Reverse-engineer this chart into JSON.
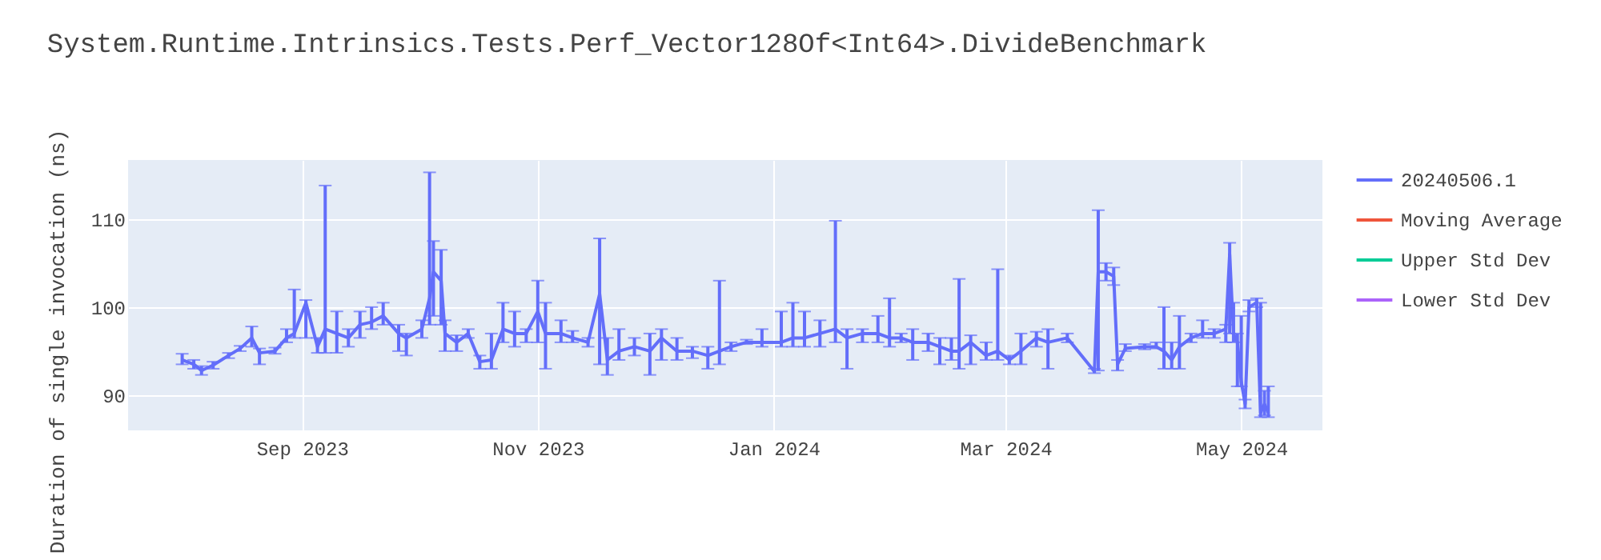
{
  "chart_data": {
    "type": "line",
    "title": "System.Runtime.Intrinsics.Tests.Perf_Vector128Of<Int64>.DivideBenchmark",
    "ylabel": "Duration of single invocation (ns)",
    "x": [
      "2023-08-01",
      "2023-08-04",
      "2023-08-06",
      "2023-08-09",
      "2023-08-13",
      "2023-08-16",
      "2023-08-19",
      "2023-08-21",
      "2023-08-25",
      "2023-08-28",
      "2023-08-30",
      "2023-09-02",
      "2023-09-05",
      "2023-09-07",
      "2023-09-10",
      "2023-09-13",
      "2023-09-16",
      "2023-09-19",
      "2023-09-22",
      "2023-09-26",
      "2023-09-28",
      "2023-10-02",
      "2023-10-04",
      "2023-10-05",
      "2023-10-07",
      "2023-10-08",
      "2023-10-11",
      "2023-10-14",
      "2023-10-17",
      "2023-10-20",
      "2023-10-23",
      "2023-10-26",
      "2023-10-29",
      "2023-11-01",
      "2023-11-03",
      "2023-11-07",
      "2023-11-10",
      "2023-11-14",
      "2023-11-17",
      "2023-11-19",
      "2023-11-22",
      "2023-11-26",
      "2023-11-30",
      "2023-12-03",
      "2023-12-07",
      "2023-12-11",
      "2023-12-15",
      "2023-12-18",
      "2023-12-21",
      "2023-12-25",
      "2023-12-29",
      "2024-01-03",
      "2024-01-06",
      "2024-01-09",
      "2024-01-13",
      "2024-01-17",
      "2024-01-20",
      "2024-01-24",
      "2024-01-28",
      "2024-01-31",
      "2024-02-03",
      "2024-02-06",
      "2024-02-10",
      "2024-02-13",
      "2024-02-16",
      "2024-02-18",
      "2024-02-21",
      "2024-02-25",
      "2024-02-28",
      "2024-03-02",
      "2024-03-05",
      "2024-03-09",
      "2024-03-12",
      "2024-03-17",
      "2024-03-24",
      "2024-03-25",
      "2024-03-27",
      "2024-03-29",
      "2024-03-30",
      "2024-04-01",
      "2024-04-06",
      "2024-04-09",
      "2024-04-11",
      "2024-04-13",
      "2024-04-15",
      "2024-04-18",
      "2024-04-21",
      "2024-04-24",
      "2024-04-27",
      "2024-04-28",
      "2024-04-29",
      "2024-04-30",
      "2024-05-01",
      "2024-05-02",
      "2024-05-03",
      "2024-05-05",
      "2024-05-06",
      "2024-05-07",
      "2024-05-08"
    ],
    "series": [
      {
        "name": "20240506.1",
        "color": "#636efa",
        "values": [
          94,
          93.5,
          92.8,
          93.4,
          94.5,
          95.3,
          96.5,
          94.8,
          95,
          96.5,
          97,
          100.5,
          95.5,
          97.5,
          97,
          96.5,
          98,
          98.3,
          99,
          97,
          96.5,
          97.5,
          101,
          104,
          103,
          97,
          96,
          97,
          93.8,
          94,
          97.5,
          97,
          97,
          99.5,
          97,
          97,
          96.5,
          96,
          101.5,
          94,
          95,
          95.5,
          95,
          96.5,
          95,
          95,
          94.5,
          95,
          95.5,
          96,
          96,
          96,
          96.5,
          96.5,
          97,
          97.5,
          96.5,
          97,
          97,
          96.5,
          96.5,
          96,
          96,
          95.5,
          95,
          95,
          96,
          94.5,
          95,
          94,
          95,
          96.5,
          96,
          96.5,
          92.7,
          104,
          104,
          103.5,
          93.5,
          95.3,
          95.5,
          95.5,
          95,
          94,
          95.5,
          96.5,
          97,
          97,
          97.5,
          106,
          97,
          96,
          91.5,
          89,
          100,
          100.5,
          88,
          89,
          88
        ],
        "errors": [
          [
            93.5,
            94.7
          ],
          [
            93,
            94
          ],
          [
            92.3,
            93.3
          ],
          [
            93,
            93.8
          ],
          [
            94.2,
            94.8
          ],
          [
            95,
            95.6
          ],
          [
            95.5,
            97.8
          ],
          [
            93.5,
            95.3
          ],
          [
            94.7,
            95.4
          ],
          [
            96,
            97.5
          ],
          [
            96.5,
            102
          ],
          [
            96.5,
            100.8
          ],
          [
            94.8,
            96.5
          ],
          [
            94.8,
            113.8
          ],
          [
            94.8,
            99.5
          ],
          [
            95.5,
            97.5
          ],
          [
            96.5,
            99.5
          ],
          [
            97.5,
            100
          ],
          [
            98,
            100.5
          ],
          [
            95,
            98
          ],
          [
            94.5,
            97
          ],
          [
            96.5,
            98.5
          ],
          [
            98,
            115.3
          ],
          [
            99,
            107.5
          ],
          [
            98,
            106.5
          ],
          [
            95,
            98.5
          ],
          [
            95,
            96.8
          ],
          [
            96.5,
            97.5
          ],
          [
            93,
            94.5
          ],
          [
            93,
            97
          ],
          [
            96,
            100.5
          ],
          [
            95.5,
            99.5
          ],
          [
            96,
            97.5
          ],
          [
            96,
            103
          ],
          [
            93,
            100.5
          ],
          [
            96,
            98.5
          ],
          [
            96,
            97.3
          ],
          [
            95.5,
            96.5
          ],
          [
            93.5,
            107.8
          ],
          [
            92.3,
            96.5
          ],
          [
            94,
            97.5
          ],
          [
            94.5,
            96.5
          ],
          [
            92.3,
            97
          ],
          [
            94,
            97.5
          ],
          [
            94,
            96.5
          ],
          [
            94.2,
            95.5
          ],
          [
            93,
            95.5
          ],
          [
            93.5,
            103
          ],
          [
            95,
            96
          ],
          [
            95.8,
            96.3
          ],
          [
            95.5,
            97.5
          ],
          [
            95.5,
            99.5
          ],
          [
            95.5,
            100.5
          ],
          [
            95.5,
            99.5
          ],
          [
            95.5,
            98.5
          ],
          [
            96,
            109.8
          ],
          [
            93,
            97.5
          ],
          [
            96,
            97.5
          ],
          [
            96,
            99
          ],
          [
            95.5,
            101
          ],
          [
            96,
            97
          ],
          [
            94,
            97.5
          ],
          [
            95,
            97
          ],
          [
            93.5,
            96.5
          ],
          [
            94,
            96.5
          ],
          [
            93,
            103.2
          ],
          [
            93.5,
            96.8
          ],
          [
            94,
            96
          ],
          [
            94,
            104.3
          ],
          [
            93.5,
            94.5
          ],
          [
            93.5,
            97
          ],
          [
            95.5,
            97.2
          ],
          [
            93,
            97.5
          ],
          [
            96,
            97
          ],
          [
            92.5,
            93
          ],
          [
            92.8,
            111
          ],
          [
            103,
            105
          ],
          [
            102.5,
            104.5
          ],
          [
            92.8,
            94
          ],
          [
            95,
            95.8
          ],
          [
            95.2,
            95.8
          ],
          [
            95.3,
            96
          ],
          [
            93,
            100
          ],
          [
            93,
            96
          ],
          [
            93,
            99
          ],
          [
            96,
            97
          ],
          [
            96.5,
            98.5
          ],
          [
            96.5,
            97.5
          ],
          [
            96,
            98
          ],
          [
            97,
            107.3
          ],
          [
            96,
            100.5
          ],
          [
            91,
            97
          ],
          [
            91,
            99
          ],
          [
            88.5,
            89.5
          ],
          [
            99.5,
            100.8
          ],
          [
            100,
            101
          ],
          [
            87.5,
            100.5
          ],
          [
            87.7,
            90.5
          ],
          [
            87.5,
            91
          ]
        ]
      },
      {
        "name": "Moving Average",
        "color": "#ef553b",
        "values": [
          null,
          null,
          null,
          null,
          null,
          null,
          null,
          null,
          null,
          null,
          null,
          null,
          null,
          null,
          null,
          null,
          null,
          null,
          null,
          null,
          null,
          null,
          null,
          null,
          null,
          null,
          null,
          null,
          null,
          null,
          null,
          null,
          null,
          null,
          null,
          null,
          null,
          null,
          null,
          null,
          null,
          null,
          null,
          null,
          null,
          null,
          null,
          null,
          null,
          null,
          null,
          null,
          null,
          null,
          null,
          null,
          null,
          null,
          null,
          null,
          null,
          null,
          null,
          null,
          null,
          null,
          null,
          null,
          null,
          null,
          null,
          null,
          null,
          null,
          null,
          null,
          null,
          null,
          null,
          null,
          null,
          null,
          null,
          null,
          null,
          null,
          null,
          null,
          null,
          null,
          null,
          null,
          null,
          null,
          null,
          null,
          null,
          null,
          null
        ]
      },
      {
        "name": "Upper Std Dev",
        "color": "#00cc96",
        "values": [
          null,
          null,
          null,
          null,
          null,
          null,
          null,
          null,
          null,
          null,
          null,
          null,
          null,
          null,
          null,
          null,
          null,
          null,
          null,
          null,
          null,
          null,
          null,
          null,
          null,
          null,
          null,
          null,
          null,
          null,
          null,
          null,
          null,
          null,
          null,
          null,
          null,
          null,
          null,
          null,
          null,
          null,
          null,
          null,
          null,
          null,
          null,
          null,
          null,
          null,
          null,
          null,
          null,
          null,
          null,
          null,
          null,
          null,
          null,
          null,
          null,
          null,
          null,
          null,
          null,
          null,
          null,
          null,
          null,
          null,
          null,
          null,
          null,
          null,
          null,
          null,
          null,
          null,
          null,
          null,
          null,
          null,
          null,
          null,
          null,
          null,
          null,
          null,
          null,
          null,
          null,
          null,
          null,
          null,
          null,
          null,
          null,
          null,
          null
        ]
      },
      {
        "name": "Lower Std Dev",
        "color": "#ab63fa",
        "values": [
          null,
          null,
          null,
          null,
          null,
          null,
          null,
          null,
          null,
          null,
          null,
          null,
          null,
          null,
          null,
          null,
          null,
          null,
          null,
          null,
          null,
          null,
          null,
          null,
          null,
          null,
          null,
          null,
          null,
          null,
          null,
          null,
          null,
          null,
          null,
          null,
          null,
          null,
          null,
          null,
          null,
          null,
          null,
          null,
          null,
          null,
          null,
          null,
          null,
          null,
          null,
          null,
          null,
          null,
          null,
          null,
          null,
          null,
          null,
          null,
          null,
          null,
          null,
          null,
          null,
          null,
          null,
          null,
          null,
          null,
          null,
          null,
          null,
          null,
          null,
          null,
          null,
          null,
          null,
          null,
          null,
          null,
          null,
          null,
          null,
          null,
          null,
          null,
          null,
          null,
          null,
          null,
          null,
          null,
          null,
          null,
          null,
          null,
          null
        ]
      }
    ],
    "xlim": [
      "2023-07-18",
      "2024-05-22"
    ],
    "xticks": [
      {
        "value": "2023-09-01",
        "label": "Sep 2023"
      },
      {
        "value": "2023-11-01",
        "label": "Nov 2023"
      },
      {
        "value": "2024-01-01",
        "label": "Jan 2024"
      },
      {
        "value": "2024-03-01",
        "label": "Mar 2024"
      },
      {
        "value": "2024-05-01",
        "label": "May 2024"
      }
    ],
    "ylim": [
      86,
      116.7
    ],
    "yticks": [
      90,
      100,
      110
    ],
    "grid": true,
    "legend": "top right",
    "marker": "none",
    "line_style": "solid"
  }
}
